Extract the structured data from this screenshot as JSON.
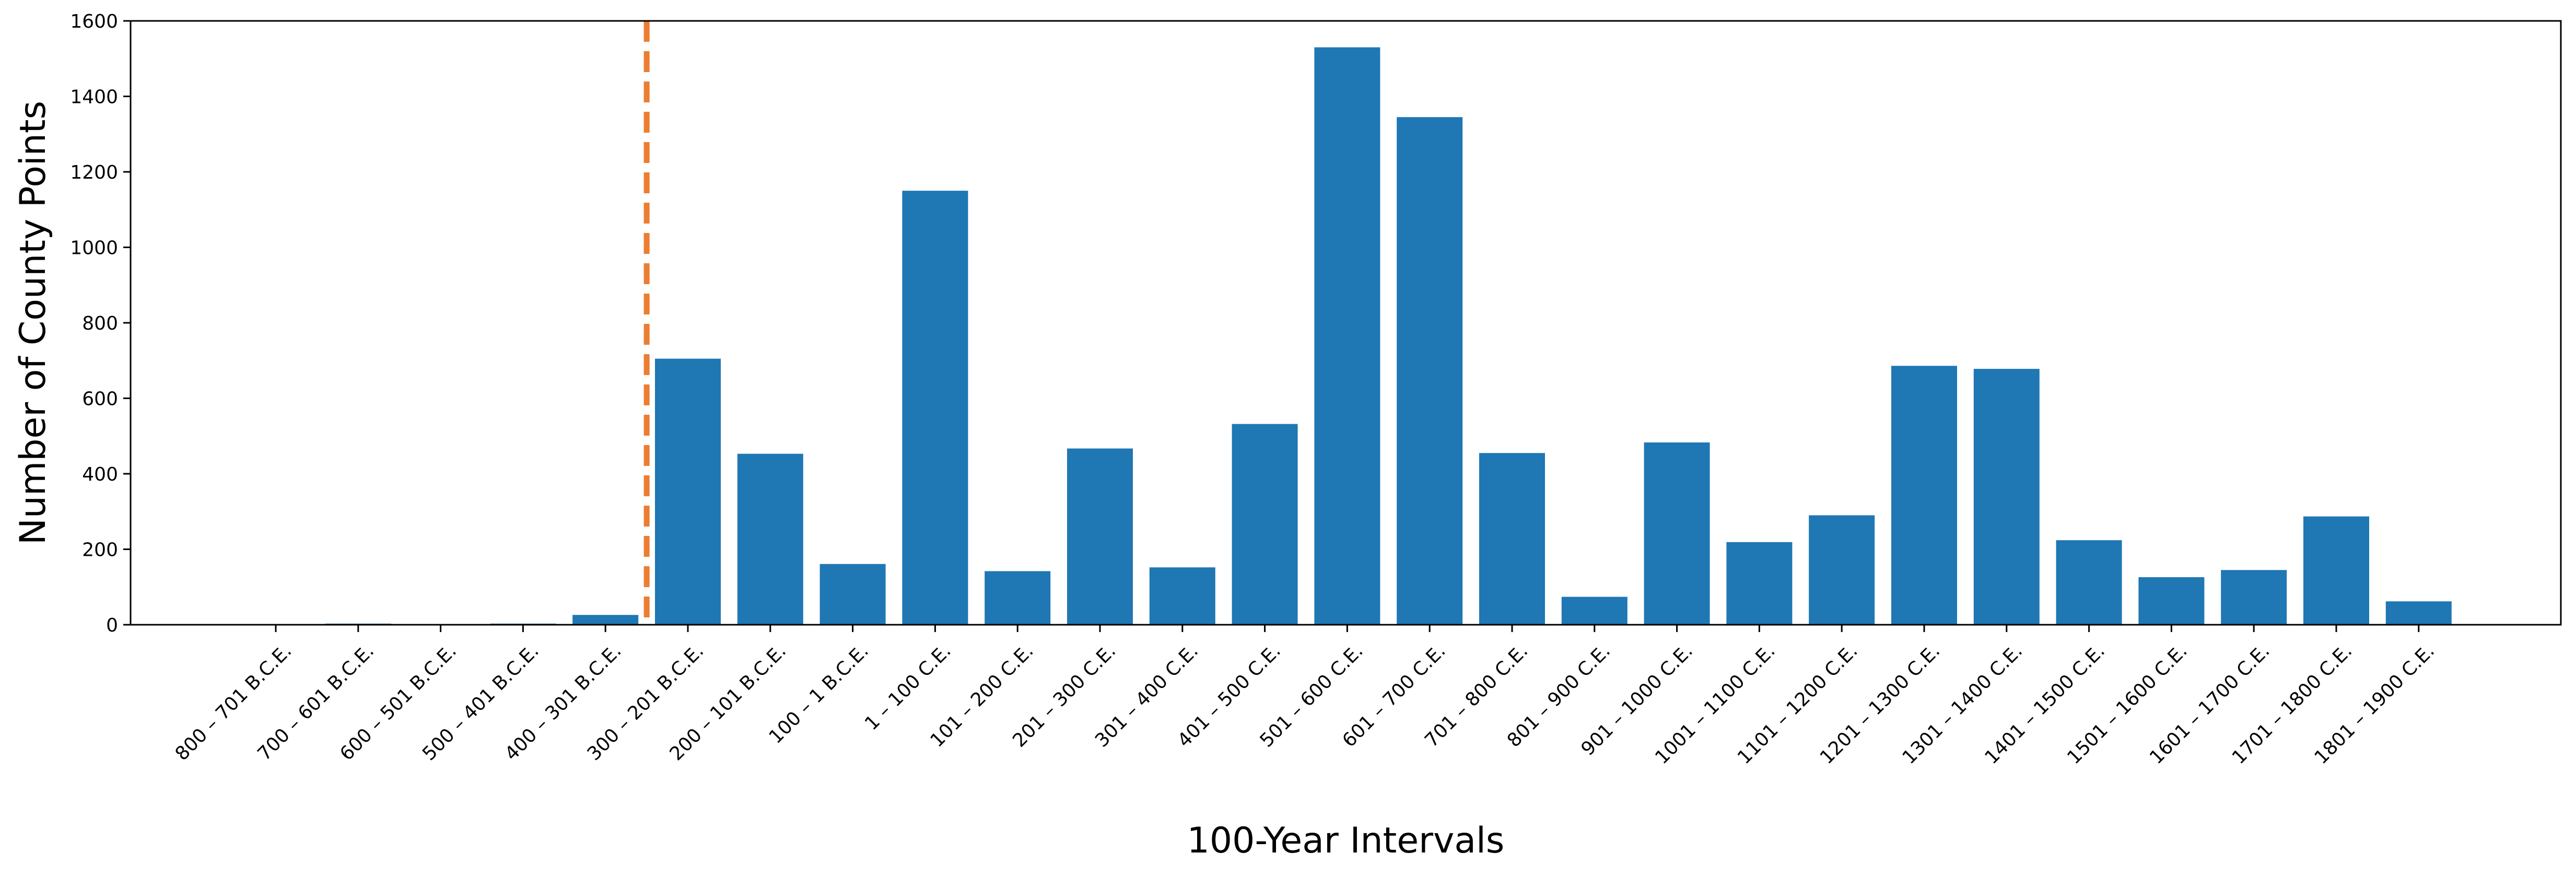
{
  "chart_data": {
    "type": "bar",
    "title": "",
    "xlabel": "100-Year Intervals",
    "ylabel": "Number of County Points",
    "ylim": [
      0,
      1600
    ],
    "yticks": [
      0,
      200,
      400,
      600,
      800,
      1000,
      1200,
      1400,
      1600
    ],
    "grid": false,
    "bar_color": "#1f77b4",
    "reference_line": {
      "style": "dashed",
      "color": "#ed7d31",
      "between": [
        "400 – 301 B.C.E.",
        "300 – 201 B.C.E."
      ]
    },
    "categories": [
      "800 – 701 B.C.E.",
      "700 – 601 B.C.E.",
      "600 – 501 B.C.E.",
      "500 – 401 B.C.E.",
      "400 – 301 B.C.E.",
      "300 – 201 B.C.E.",
      "200 – 101 B.C.E.",
      "100 – 1 B.C.E.",
      "1 – 100 C.E.",
      "101 – 200 C.E.",
      "201 – 300 C.E.",
      "301 – 400 C.E.",
      "401 – 500 C.E.",
      "501 – 600 C.E.",
      "601 – 700 C.E.",
      "701 – 800 C.E.",
      "801 – 900 C.E.",
      "901 – 1000 C.E.",
      "1001 – 1100 C.E.",
      "1101 – 1200 C.E.",
      "1201 – 1300 C.E.",
      "1301 – 1400 C.E.",
      "1401 – 1500 C.E.",
      "1501 – 1600 C.E.",
      "1601 – 1700 C.E.",
      "1701 – 1800 C.E.",
      "1801 – 1900 C.E."
    ],
    "values": [
      0,
      3,
      1,
      3,
      26,
      705,
      453,
      161,
      1150,
      142,
      467,
      152,
      532,
      1530,
      1345,
      455,
      74,
      483,
      219,
      290,
      686,
      678,
      224,
      126,
      145,
      287,
      62
    ]
  }
}
